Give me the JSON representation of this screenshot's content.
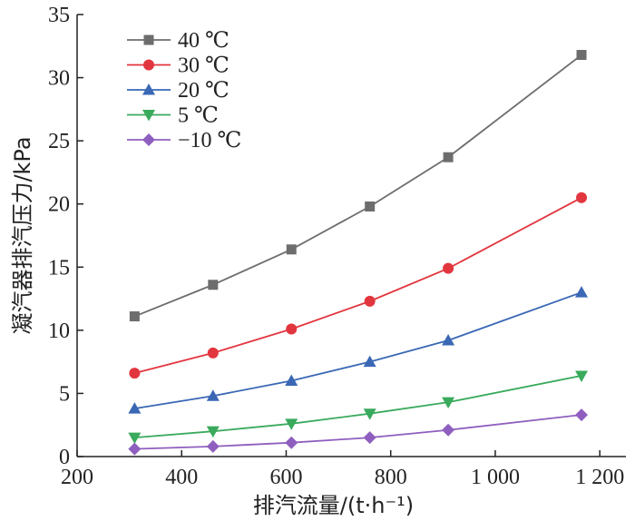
{
  "chart_data": {
    "type": "line",
    "title": "",
    "xlabel": "排汽流量/(t·h⁻¹)",
    "ylabel": "凝汽器排汽压力/kPa",
    "xlim": [
      200,
      1250
    ],
    "ylim": [
      0,
      35
    ],
    "xticks": [
      200,
      400,
      600,
      800,
      1000,
      1200
    ],
    "xtick_labels": [
      "200",
      "400",
      "600",
      "800",
      "1 000",
      "1 200"
    ],
    "yticks": [
      0,
      5,
      10,
      15,
      20,
      25,
      30,
      35
    ],
    "ytick_labels": [
      "0",
      "5",
      "10",
      "15",
      "20",
      "25",
      "30",
      "35"
    ],
    "grid": false,
    "legend_position": "top-left",
    "x": [
      310,
      460,
      610,
      760,
      910,
      1165
    ],
    "series": [
      {
        "name": "40 ℃",
        "values": [
          11.1,
          13.6,
          16.4,
          19.8,
          23.7,
          31.8
        ],
        "color": "#6d6d6d",
        "marker": "square"
      },
      {
        "name": "30 ℃",
        "values": [
          6.6,
          8.2,
          10.1,
          12.3,
          14.9,
          20.5
        ],
        "color": "#e2363f",
        "marker": "circle"
      },
      {
        "name": "20 ℃",
        "values": [
          3.8,
          4.8,
          6.0,
          7.5,
          9.2,
          13.0
        ],
        "color": "#3a68b5",
        "marker": "triangle-up"
      },
      {
        "name": "5 ℃",
        "values": [
          1.5,
          2.0,
          2.6,
          3.4,
          4.3,
          6.4
        ],
        "color": "#3aaa5c",
        "marker": "triangle-down"
      },
      {
        "name": "−10 ℃",
        "values": [
          0.6,
          0.8,
          1.1,
          1.5,
          2.1,
          3.3
        ],
        "color": "#8f5fbf",
        "marker": "diamond"
      }
    ]
  }
}
